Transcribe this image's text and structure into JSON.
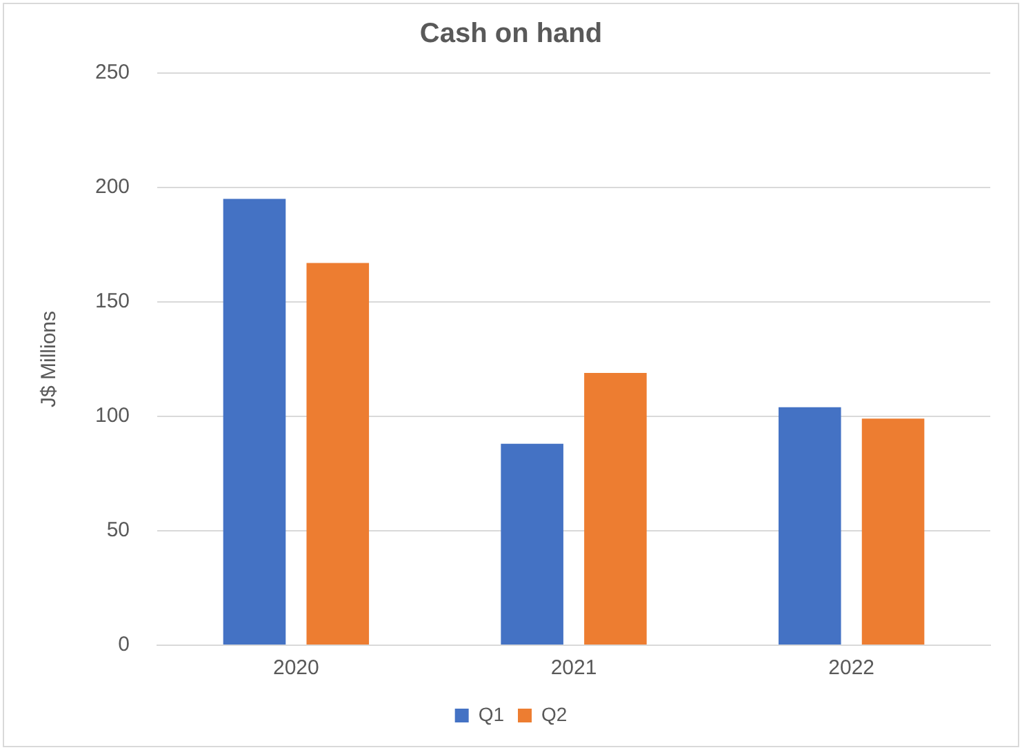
{
  "chart_data": {
    "type": "bar",
    "title": "Cash on hand",
    "ylabel": "J$ Millions",
    "categories": [
      "2020",
      "2021",
      "2022"
    ],
    "series": [
      {
        "name": "Q1",
        "color": "#4472c4",
        "values": [
          195,
          88,
          104
        ]
      },
      {
        "name": "Q2",
        "color": "#ed7d31",
        "values": [
          167,
          119,
          99
        ]
      }
    ],
    "ylim": [
      0,
      250
    ],
    "yticks": [
      0,
      50,
      100,
      150,
      200,
      250
    ],
    "grid": "y",
    "legend": "bottom"
  }
}
